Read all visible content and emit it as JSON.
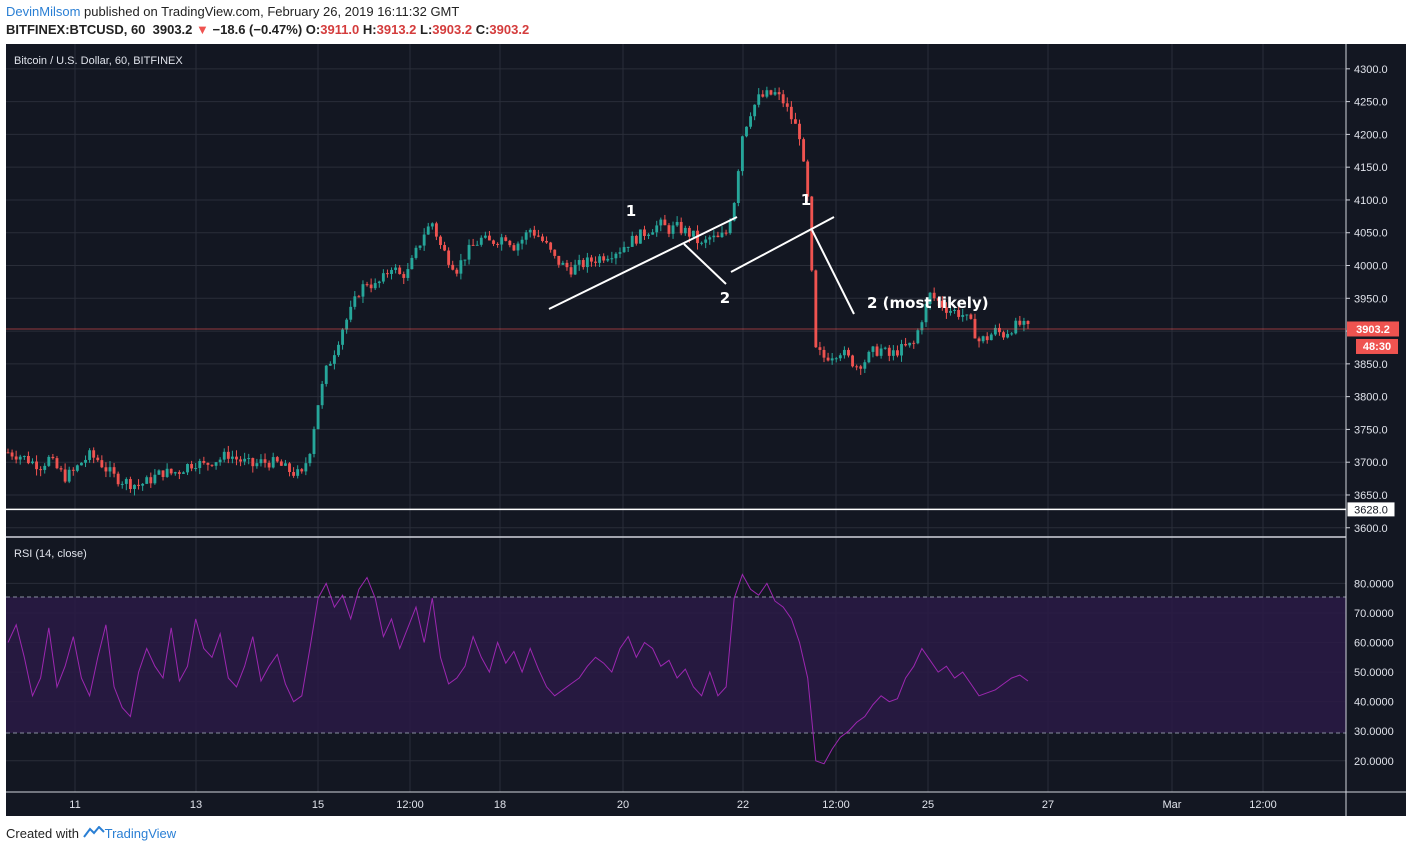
{
  "header": {
    "author": "DevinMilsom",
    "published": "published on TradingView.com, February 26, 2019 16:11:32 GMT",
    "symbol": "BITFINEX:BTCUSD, 60",
    "price": "3903.2",
    "change": "−18.6 (−0.47%)",
    "o_label": "O:",
    "o_value": "3911.0",
    "h_label": "H:",
    "h_value": "3913.2",
    "l_label": "L:",
    "l_value": "3903.2",
    "c_label": "C:",
    "c_value": "3903.2"
  },
  "footer": {
    "created_with": "Created with",
    "brand": "TradingView"
  },
  "colors": {
    "background": "#131722",
    "up": "#26a69a",
    "down": "#ef5350",
    "rsi": "#9c27b0",
    "annotation": "#ffffff"
  },
  "chart_data": [
    {
      "type": "candlestick",
      "title": "Bitcoin / U.S. Dollar, 60, BITFINEX",
      "xlabel": "",
      "ylabel": "",
      "x_ticks": [
        "11",
        "13",
        "15",
        "12:00",
        "18",
        "20",
        "22",
        "12:00",
        "25",
        "27",
        "Mar",
        "12:00"
      ],
      "y_ticks": [
        3600,
        3650,
        3700,
        3750,
        3800,
        3850,
        3900,
        3950,
        4000,
        4050,
        4100,
        4150,
        4200,
        4250,
        4300
      ],
      "ylim": [
        3592,
        4315
      ],
      "last_price": "3903.2",
      "countdown": "48:30",
      "horizontal_line": "3628.0",
      "annotations": [
        "1",
        "2",
        "1",
        "2 (most likely)"
      ],
      "grid": true,
      "series": [
        {
          "price_path": [
            [
              0,
              3715
            ],
            [
              3,
              3710
            ],
            [
              6,
              3700
            ],
            [
              8,
              3695
            ],
            [
              10,
              3705
            ],
            [
              12,
              3690
            ],
            [
              14,
              3678
            ],
            [
              16,
              3685
            ],
            [
              18,
              3700
            ],
            [
              20,
              3710
            ],
            [
              22,
              3704
            ],
            [
              24,
              3690
            ],
            [
              26,
              3678
            ],
            [
              28,
              3672
            ],
            [
              30,
              3668
            ],
            [
              32,
              3665
            ],
            [
              34,
              3670
            ],
            [
              36,
              3678
            ],
            [
              38,
              3685
            ],
            [
              40,
              3683
            ],
            [
              42,
              3687
            ],
            [
              44,
              3695
            ],
            [
              46,
              3700
            ],
            [
              48,
              3695
            ],
            [
              50,
              3702
            ],
            [
              52,
              3705
            ],
            [
              54,
              3712
            ],
            [
              56,
              3705
            ],
            [
              58,
              3700
            ],
            [
              60,
              3695
            ],
            [
              62,
              3700
            ],
            [
              64,
              3700
            ],
            [
              66,
              3698
            ],
            [
              68,
              3690
            ],
            [
              70,
              3684
            ],
            [
              72,
              3680
            ],
            [
              74,
              3720
            ],
            [
              76,
              3790
            ],
            [
              78,
              3840
            ],
            [
              80,
              3870
            ],
            [
              82,
              3905
            ],
            [
              84,
              3930
            ],
            [
              86,
              3960
            ],
            [
              88,
              3975
            ],
            [
              90,
              3968
            ],
            [
              92,
              3980
            ],
            [
              94,
              4000
            ],
            [
              96,
              3985
            ],
            [
              98,
              3990
            ],
            [
              100,
              4020
            ],
            [
              102,
              4050
            ],
            [
              104,
              4065
            ],
            [
              106,
              4030
            ],
            [
              108,
              4010
            ],
            [
              110,
              3995
            ],
            [
              112,
              4015
            ],
            [
              114,
              4030
            ],
            [
              116,
              4040
            ],
            [
              118,
              4035
            ],
            [
              120,
              4040
            ],
            [
              122,
              4045
            ],
            [
              124,
              4030
            ],
            [
              126,
              4040
            ],
            [
              128,
              4055
            ],
            [
              130,
              4045
            ],
            [
              132,
              4030
            ],
            [
              134,
              4010
            ],
            [
              136,
              4000
            ],
            [
              138,
              3995
            ],
            [
              140,
              4000
            ],
            [
              142,
              4005
            ],
            [
              144,
              4010
            ],
            [
              146,
              4015
            ],
            [
              148,
              4020
            ],
            [
              150,
              4025
            ],
            [
              152,
              4035
            ],
            [
              154,
              4042
            ],
            [
              156,
              4050
            ],
            [
              158,
              4058
            ],
            [
              160,
              4062
            ],
            [
              162,
              4055
            ],
            [
              164,
              4058
            ],
            [
              166,
              4052
            ],
            [
              168,
              4045
            ],
            [
              170,
              4030
            ],
            [
              172,
              4042
            ],
            [
              174,
              4040
            ],
            [
              176,
              4050
            ],
            [
              178,
              4100
            ],
            [
              180,
              4200
            ],
            [
              182,
              4235
            ],
            [
              184,
              4255
            ],
            [
              186,
              4260
            ],
            [
              188,
              4262
            ],
            [
              190,
              4250
            ],
            [
              192,
              4225
            ],
            [
              194,
              4200
            ],
            [
              196,
              4100
            ],
            [
              198,
              3870
            ],
            [
              200,
              3860
            ],
            [
              202,
              3865
            ],
            [
              204,
              3870
            ],
            [
              206,
              3858
            ],
            [
              208,
              3848
            ],
            [
              210,
              3855
            ],
            [
              212,
              3868
            ],
            [
              214,
              3872
            ],
            [
              216,
              3862
            ],
            [
              218,
              3870
            ],
            [
              220,
              3875
            ],
            [
              222,
              3880
            ],
            [
              224,
              3920
            ],
            [
              226,
              3955
            ],
            [
              228,
              3945
            ],
            [
              230,
              3935
            ],
            [
              232,
              3930
            ],
            [
              234,
              3925
            ],
            [
              236,
              3910
            ],
            [
              238,
              3885
            ],
            [
              240,
              3890
            ],
            [
              242,
              3900
            ],
            [
              244,
              3895
            ],
            [
              246,
              3905
            ],
            [
              248,
              3910
            ],
            [
              250,
              3903.2
            ]
          ]
        }
      ]
    },
    {
      "type": "line",
      "title": "RSI (14, close)",
      "xlabel": "",
      "ylabel": "",
      "y_ticks": [
        "20.0000",
        "30.0000",
        "40.0000",
        "50.0000",
        "60.0000",
        "70.0000",
        "80.0000"
      ],
      "ylim": [
        15.2,
        86.9
      ],
      "band": [
        30,
        70
      ],
      "series": [
        {
          "values": [
            [
              0,
              60
            ],
            [
              2,
              66
            ],
            [
              4,
              55
            ],
            [
              6,
              42
            ],
            [
              8,
              48
            ],
            [
              10,
              65
            ],
            [
              12,
              45
            ],
            [
              14,
              52
            ],
            [
              16,
              62
            ],
            [
              18,
              48
            ],
            [
              20,
              42
            ],
            [
              22,
              55
            ],
            [
              24,
              66
            ],
            [
              26,
              45
            ],
            [
              28,
              38
            ],
            [
              30,
              35
            ],
            [
              32,
              50
            ],
            [
              34,
              58
            ],
            [
              36,
              52
            ],
            [
              38,
              48
            ],
            [
              40,
              65
            ],
            [
              42,
              47
            ],
            [
              44,
              52
            ],
            [
              46,
              68
            ],
            [
              48,
              58
            ],
            [
              50,
              55
            ],
            [
              52,
              63
            ],
            [
              54,
              48
            ],
            [
              56,
              45
            ],
            [
              58,
              52
            ],
            [
              60,
              62
            ],
            [
              62,
              47
            ],
            [
              64,
              52
            ],
            [
              66,
              56
            ],
            [
              68,
              46
            ],
            [
              70,
              40
            ],
            [
              72,
              42
            ],
            [
              74,
              58
            ],
            [
              76,
              75
            ],
            [
              78,
              80
            ],
            [
              80,
              72
            ],
            [
              82,
              76
            ],
            [
              84,
              68
            ],
            [
              86,
              78
            ],
            [
              88,
              82
            ],
            [
              90,
              75
            ],
            [
              92,
              62
            ],
            [
              94,
              68
            ],
            [
              96,
              58
            ],
            [
              98,
              65
            ],
            [
              100,
              72
            ],
            [
              102,
              60
            ],
            [
              104,
              75
            ],
            [
              106,
              55
            ],
            [
              108,
              46
            ],
            [
              110,
              48
            ],
            [
              112,
              52
            ],
            [
              114,
              62
            ],
            [
              116,
              55
            ],
            [
              118,
              50
            ],
            [
              120,
              60
            ],
            [
              122,
              53
            ],
            [
              124,
              57
            ],
            [
              126,
              50
            ],
            [
              128,
              58
            ],
            [
              130,
              51
            ],
            [
              132,
              45
            ],
            [
              134,
              42
            ],
            [
              136,
              44
            ],
            [
              138,
              46
            ],
            [
              140,
              48
            ],
            [
              142,
              52
            ],
            [
              144,
              55
            ],
            [
              146,
              53
            ],
            [
              148,
              50
            ],
            [
              150,
              58
            ],
            [
              152,
              62
            ],
            [
              154,
              55
            ],
            [
              156,
              60
            ],
            [
              158,
              58
            ],
            [
              160,
              52
            ],
            [
              162,
              54
            ],
            [
              164,
              48
            ],
            [
              166,
              51
            ],
            [
              168,
              45
            ],
            [
              170,
              42
            ],
            [
              172,
              50
            ],
            [
              174,
              42
            ],
            [
              176,
              45
            ],
            [
              178,
              75
            ],
            [
              180,
              83
            ],
            [
              182,
              78
            ],
            [
              184,
              76
            ],
            [
              186,
              80
            ],
            [
              188,
              74
            ],
            [
              190,
              72
            ],
            [
              192,
              68
            ],
            [
              194,
              60
            ],
            [
              196,
              48
            ],
            [
              198,
              20
            ],
            [
              200,
              19
            ],
            [
              202,
              24
            ],
            [
              204,
              28
            ],
            [
              206,
              30
            ],
            [
              208,
              33
            ],
            [
              210,
              35
            ],
            [
              212,
              39
            ],
            [
              214,
              42
            ],
            [
              216,
              40
            ],
            [
              218,
              41
            ],
            [
              220,
              48
            ],
            [
              222,
              52
            ],
            [
              224,
              58
            ],
            [
              226,
              54
            ],
            [
              228,
              50
            ],
            [
              230,
              52
            ],
            [
              232,
              48
            ],
            [
              234,
              50
            ],
            [
              236,
              46
            ],
            [
              238,
              42
            ],
            [
              240,
              43
            ],
            [
              242,
              44
            ],
            [
              244,
              46
            ],
            [
              246,
              48
            ],
            [
              248,
              49
            ],
            [
              250,
              47
            ]
          ]
        }
      ]
    }
  ]
}
